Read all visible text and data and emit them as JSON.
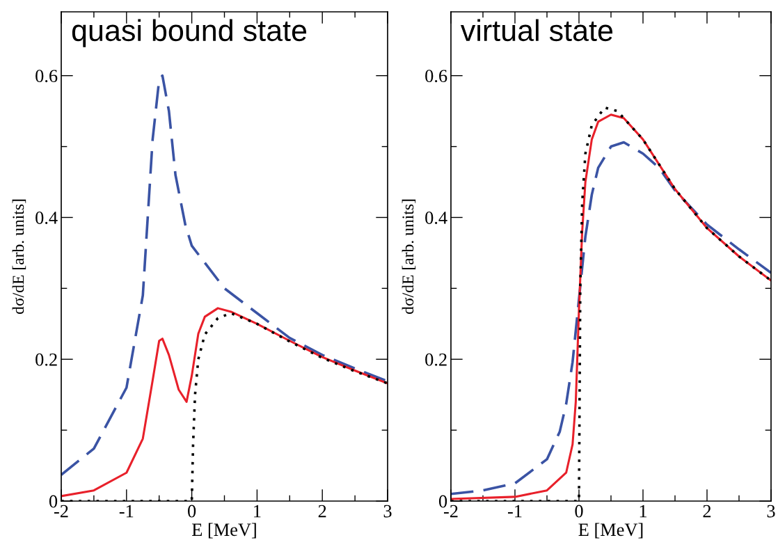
{
  "chart_data": [
    {
      "type": "line",
      "title": "quasi bound state",
      "xlabel": "E [MeV]",
      "ylabel": "dσ/dE [arb. units]",
      "xlim": [
        -2,
        3
      ],
      "ylim": [
        0,
        0.69
      ],
      "xticks": [
        -2,
        -1,
        0,
        1,
        2,
        3
      ],
      "yticks": [
        0,
        0.2,
        0.4,
        0.6
      ],
      "grid": false,
      "legend": false,
      "marker": "none",
      "series": [
        {
          "color": "#3a53a4",
          "line_style": "dashed",
          "x": [
            -2,
            -1.5,
            -1,
            -0.75,
            -0.6,
            -0.5,
            -0.45,
            -0.35,
            -0.25,
            -0.1,
            0,
            0.5,
            1,
            1.5,
            2,
            2.5,
            3
          ],
          "values": [
            0.037,
            0.074,
            0.16,
            0.29,
            0.51,
            0.594,
            0.6,
            0.55,
            0.46,
            0.39,
            0.36,
            0.3,
            0.265,
            0.23,
            0.206,
            0.187,
            0.169
          ]
        },
        {
          "color": "#e8202a",
          "line_style": "solid",
          "x": [
            -2,
            -1.5,
            -1,
            -0.75,
            -0.6,
            -0.5,
            -0.45,
            -0.35,
            -0.2,
            -0.08,
            0,
            0.1,
            0.2,
            0.4,
            0.6,
            1,
            1.5,
            2,
            2.5,
            3
          ],
          "values": [
            0.007,
            0.015,
            0.04,
            0.088,
            0.17,
            0.226,
            0.229,
            0.206,
            0.157,
            0.14,
            0.177,
            0.236,
            0.26,
            0.272,
            0.267,
            0.25,
            0.226,
            0.203,
            0.184,
            0.166
          ]
        },
        {
          "color": "#000000",
          "line_style": "dotted",
          "x": [
            -2,
            -1,
            0,
            0.02,
            0.05,
            0.1,
            0.2,
            0.4,
            0.6,
            1,
            1.5,
            2,
            2.5,
            3
          ],
          "values": [
            0,
            0,
            0,
            0.08,
            0.15,
            0.2,
            0.235,
            0.258,
            0.265,
            0.25,
            0.225,
            0.202,
            0.183,
            0.166
          ]
        }
      ]
    },
    {
      "type": "line",
      "title": "virtual state",
      "xlabel": "E [MeV]",
      "ylabel": "dσ/dE [arb. units]",
      "xlim": [
        -2,
        3
      ],
      "ylim": [
        0,
        0.69
      ],
      "xticks": [
        -2,
        -1,
        0,
        1,
        2,
        3
      ],
      "yticks": [
        0,
        0.2,
        0.4,
        0.6
      ],
      "grid": false,
      "legend": false,
      "marker": "none",
      "series": [
        {
          "color": "#3a53a4",
          "line_style": "dashed",
          "x": [
            -2,
            -1.5,
            -1,
            -0.5,
            -0.3,
            -0.2,
            -0.1,
            0,
            0.1,
            0.2,
            0.3,
            0.5,
            0.7,
            1,
            1.25,
            1.5,
            2,
            2.5,
            3
          ],
          "values": [
            0.01,
            0.015,
            0.025,
            0.059,
            0.098,
            0.137,
            0.196,
            0.285,
            0.373,
            0.432,
            0.47,
            0.5,
            0.506,
            0.49,
            0.47,
            0.438,
            0.39,
            0.355,
            0.322
          ]
        },
        {
          "color": "#e8202a",
          "line_style": "solid",
          "x": [
            -2,
            -1,
            -0.5,
            -0.2,
            -0.1,
            -0.05,
            0,
            0.05,
            0.1,
            0.2,
            0.3,
            0.5,
            0.7,
            1,
            1.25,
            1.5,
            2,
            2.5,
            3
          ],
          "values": [
            0.003,
            0.006,
            0.015,
            0.04,
            0.08,
            0.14,
            0.27,
            0.38,
            0.45,
            0.51,
            0.535,
            0.545,
            0.54,
            0.51,
            0.475,
            0.44,
            0.385,
            0.345,
            0.311
          ]
        },
        {
          "color": "#000000",
          "line_style": "dotted",
          "x": [
            -2,
            -1,
            0,
            0.02,
            0.05,
            0.1,
            0.2,
            0.4,
            0.6,
            1,
            1.5,
            2,
            2.5,
            3
          ],
          "values": [
            0,
            0,
            0,
            0.3,
            0.42,
            0.49,
            0.53,
            0.555,
            0.55,
            0.51,
            0.44,
            0.385,
            0.345,
            0.311
          ]
        }
      ]
    }
  ]
}
